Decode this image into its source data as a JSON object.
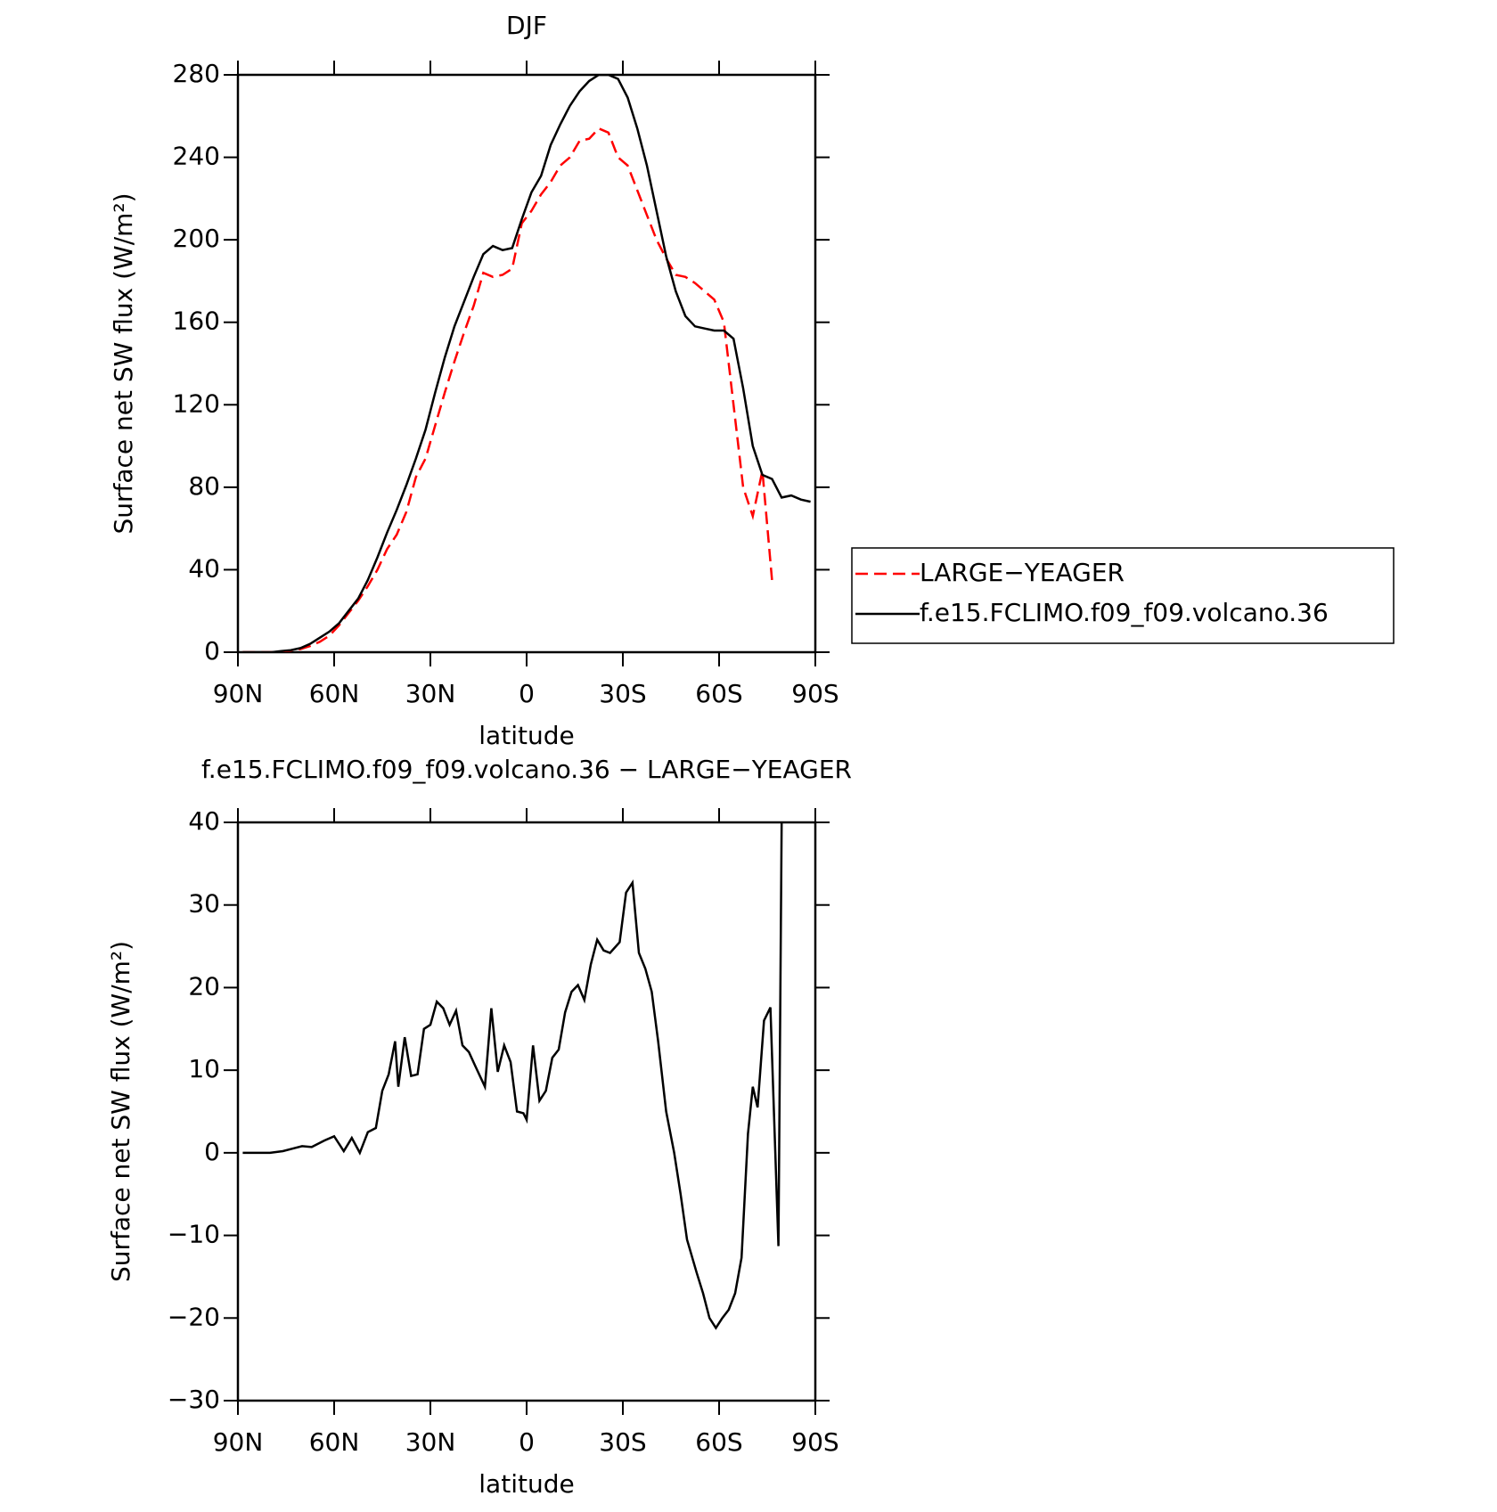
{
  "chart_data": [
    {
      "type": "line",
      "title": "DJF",
      "xlabel": "latitude",
      "ylabel": "Surface net SW flux (W/m²)",
      "x": [
        88.5,
        85.5,
        82.5,
        79.5,
        76.5,
        73.5,
        70.5,
        67.5,
        64.5,
        61.5,
        58.5,
        55.5,
        52.5,
        49.5,
        46.5,
        43.5,
        40.5,
        37.5,
        34.5,
        31.5,
        28.5,
        25.5,
        22.5,
        19.5,
        16.5,
        13.5,
        10.5,
        7.5,
        4.5,
        1.5,
        -1.5,
        -4.5,
        -7.5,
        -10.5,
        -13.5,
        -16.5,
        -19.5,
        -22.5,
        -25.5,
        -28.5,
        -31.5,
        -34.5,
        -37.5,
        -40.5,
        -43.5,
        -46.5,
        -49.5,
        -52.5,
        -55.5,
        -58.5,
        -61.5,
        -64.5,
        -67.5,
        -70.5,
        -73.5,
        -76.5,
        -79.5,
        -82.5,
        -85.5,
        -88.5
      ],
      "series": [
        {
          "name": "LARGE−YEAGER",
          "color": "#ff0000",
          "style": "dashed",
          "values": [
            0,
            0,
            0,
            0,
            0.3,
            0.8,
            1.5,
            3,
            5,
            8,
            13,
            19,
            25,
            32,
            40,
            50,
            57,
            68,
            85,
            94,
            110,
            126,
            141,
            155,
            168,
            184,
            182,
            183,
            186,
            208,
            214,
            222,
            228,
            236,
            240,
            248,
            249,
            254,
            252,
            240,
            236,
            224,
            212,
            200,
            191,
            183,
            182,
            179,
            175,
            171,
            160,
            120,
            80,
            66,
            88,
            35,
            null,
            null,
            null,
            null
          ]
        },
        {
          "name": "f.e15.FCLIMO.f09_f09.volcano.36",
          "color": "#000000",
          "style": "solid",
          "values": [
            0,
            0,
            0,
            0,
            0.5,
            1,
            2,
            4,
            7,
            10,
            14,
            20,
            26,
            35,
            46,
            58,
            69,
            81,
            94,
            108,
            126,
            143,
            158,
            170,
            182,
            193,
            197,
            195,
            196,
            210,
            223,
            231,
            246,
            256,
            265,
            272,
            277,
            280,
            280,
            278,
            269,
            254,
            236,
            214,
            192,
            175,
            163,
            158,
            157,
            156,
            156,
            152,
            128,
            100,
            86,
            84,
            75,
            76,
            74,
            73
          ]
        }
      ],
      "xlim": [
        90,
        -90
      ],
      "xticks": [
        {
          "value": 90,
          "label": "90N"
        },
        {
          "value": 60,
          "label": "60N"
        },
        {
          "value": 30,
          "label": "30N"
        },
        0,
        {
          "value": -30,
          "label": "30S"
        },
        {
          "value": -60,
          "label": "60S"
        },
        {
          "value": -90,
          "label": "90S"
        }
      ],
      "ylim": [
        0,
        280
      ],
      "yticks": [
        0,
        40,
        80,
        120,
        160,
        200,
        240,
        280
      ],
      "legend": "outside-right"
    },
    {
      "type": "line",
      "title": "f.e15.FCLIMO.f09_f09.volcano.36 − LARGE−YEAGER",
      "xlabel": "latitude",
      "ylabel": "Surface net SW flux (W/m²)",
      "x": [
        88.5,
        85,
        80,
        76,
        73,
        70,
        67,
        63,
        60,
        57,
        54.5,
        52,
        49.5,
        47,
        45,
        43,
        41,
        40,
        38,
        36,
        34,
        32,
        30,
        28,
        26,
        24,
        22,
        20,
        18,
        16,
        13,
        11,
        9,
        7,
        5,
        3,
        1,
        0,
        -2,
        -4,
        -6,
        -8,
        -10,
        -12,
        -14,
        -16,
        -18,
        -20,
        -22,
        -24,
        -26,
        -29,
        -31,
        -33,
        -35,
        -37,
        -39,
        -41,
        -43.5,
        -46,
        -48,
        -50,
        -53,
        -55,
        -57,
        -59,
        -61,
        -63,
        -65,
        -67,
        -69,
        -70.5,
        -72,
        -74,
        -76,
        -78.5,
        -79.5
      ],
      "series": [
        {
          "color": "#000000",
          "style": "solid",
          "values": [
            0,
            0,
            0,
            0.2,
            0.5,
            0.8,
            0.7,
            1.5,
            2,
            0.2,
            1.8,
            0,
            2.5,
            3,
            7.5,
            9.5,
            13.5,
            8,
            14,
            9.3,
            9.5,
            15,
            15.5,
            18.3,
            17.5,
            15.5,
            17.2,
            13,
            12.2,
            10.5,
            8,
            17.5,
            9.8,
            13,
            11,
            5,
            4.8,
            4,
            13,
            6.3,
            7.5,
            11.5,
            12.5,
            17,
            19.5,
            20.3,
            18.5,
            22.8,
            25.8,
            24.5,
            24.2,
            25.5,
            31.5,
            32.7,
            24.2,
            22.3,
            19.5,
            13.5,
            5,
            0,
            -5,
            -10.5,
            -14.5,
            -17,
            -20,
            -21.2,
            -20,
            -19,
            -17,
            -12.7,
            2.3,
            8,
            5.5,
            16,
            17.6,
            -11.3,
            40
          ]
        }
      ],
      "xlim": [
        90,
        -90
      ],
      "xticks": [
        {
          "value": 90,
          "label": "90N"
        },
        {
          "value": 60,
          "label": "60N"
        },
        {
          "value": 30,
          "label": "30N"
        },
        0,
        {
          "value": -30,
          "label": "30S"
        },
        {
          "value": -60,
          "label": "60S"
        },
        {
          "value": -90,
          "label": "90S"
        }
      ],
      "ylim": [
        -30,
        40
      ],
      "yticks": [
        {
          "value": -30,
          "label": "−30"
        },
        {
          "value": -20,
          "label": "−20"
        },
        {
          "value": -10,
          "label": "−10"
        },
        0,
        10,
        20,
        30,
        40
      ]
    }
  ]
}
